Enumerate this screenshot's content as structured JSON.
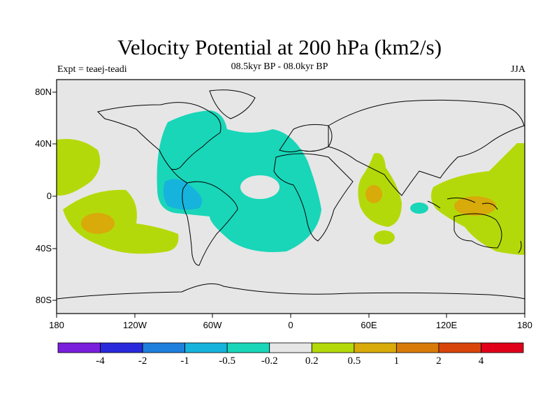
{
  "title": "Velocity Potential at 200 hPa (km2/s)",
  "subtitle_center": "08.5kyr BP - 08.0kyr BP",
  "subtitle_left": "Expt = teaej-teadi",
  "subtitle_right": "JJA",
  "axes": {
    "lat_labels": [
      "80N",
      "40N",
      "0",
      "40S",
      "80S"
    ],
    "lon_labels": [
      "180",
      "120W",
      "60W",
      "0",
      "60E",
      "120E",
      "180"
    ]
  },
  "colorbar": {
    "colors": [
      "#7a1fdc",
      "#2a2adc",
      "#1f7fdc",
      "#16b4dc",
      "#19d6b8",
      "#e6e6e6",
      "#b4d90a",
      "#d8aa0a",
      "#d87a0a",
      "#d8450a",
      "#e0001a"
    ],
    "labels": [
      "-4",
      "-2",
      "-1",
      "-0.5",
      "-0.2",
      "0.2",
      "0.5",
      "1",
      "2",
      "4"
    ]
  },
  "colors": {
    "background": "#e6e6e6",
    "neg_light": "#19d6b8",
    "neg_medium": "#16b4dc",
    "pos_light": "#b4d90a",
    "pos_medium": "#d8aa0a"
  }
}
